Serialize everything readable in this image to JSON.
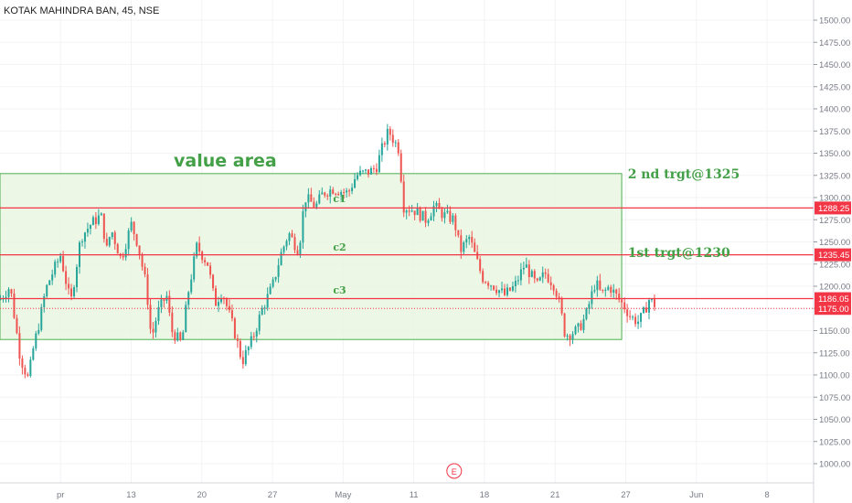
{
  "header": {
    "title": "KOTAK MAHINDRA BAN, 45, NSE"
  },
  "colors": {
    "up": "#26a69a",
    "down": "#ef5350",
    "zone_fill": "#e8f5e0",
    "zone_border": "#4caf50",
    "level_line": "#f23645",
    "annotation": "#43a047"
  },
  "chart_data": {
    "type": "candlestick",
    "y_axis": {
      "min": 985,
      "max": 1515,
      "ticks": [
        "1000.00",
        "1025.00",
        "1050.00",
        "1075.00",
        "1100.00",
        "1125.00",
        "1150.00",
        "1175.00",
        "1200.00",
        "1225.00",
        "1250.00",
        "1275.00",
        "1300.00",
        "1325.00",
        "1350.00",
        "1375.00",
        "1400.00",
        "1425.00",
        "1450.00",
        "1475.00",
        "1500.00"
      ],
      "tick_values": [
        1000,
        1025,
        1050,
        1075,
        1100,
        1125,
        1150,
        1175,
        1200,
        1225,
        1250,
        1275,
        1300,
        1325,
        1350,
        1375,
        1400,
        1425,
        1450,
        1475,
        1500
      ]
    },
    "x_axis": {
      "ticks": [
        "pr",
        "13",
        "20",
        "27",
        "May",
        "11",
        "18",
        "21",
        "27",
        "Jun",
        "8"
      ],
      "tick_values": [
        6,
        13,
        20,
        27,
        34,
        41,
        48,
        55,
        62,
        69,
        76
      ]
    },
    "value_area": {
      "label": "value area",
      "low": 1140,
      "high": 1327,
      "x_start": 0,
      "x_end": 61.6
    },
    "levels": [
      {
        "value": 1288.25,
        "label": "1288.25"
      },
      {
        "value": 1235.45,
        "label": "1235.45"
      },
      {
        "value": 1186.05,
        "label": "1186.05"
      }
    ],
    "last_price": {
      "value": 1175.0,
      "label": "1175.00"
    },
    "annotations": [
      {
        "text": "2 nd trgt@1325",
        "x": 62.2,
        "y": 1327
      },
      {
        "text": "1st trgt@1230",
        "x": 62.2,
        "y": 1238
      },
      {
        "text": "c1",
        "x": 33.0,
        "y": 1295
      },
      {
        "text": "c2",
        "x": 33.0,
        "y": 1240
      },
      {
        "text": "c3",
        "x": 33.0,
        "y": 1192
      }
    ],
    "earnings_marker": {
      "label": "E",
      "x": 45.0
    },
    "path": [
      [
        0,
        1185
      ],
      [
        1,
        1200
      ],
      [
        2,
        1120
      ],
      [
        2.8,
        1095
      ],
      [
        3.3,
        1130
      ],
      [
        4,
        1165
      ],
      [
        4.5,
        1195
      ],
      [
        5,
        1210
      ],
      [
        6,
        1235
      ],
      [
        7,
        1180
      ],
      [
        8,
        1255
      ],
      [
        9,
        1270
      ],
      [
        10,
        1280
      ],
      [
        10.6,
        1240
      ],
      [
        11,
        1265
      ],
      [
        12,
        1230
      ],
      [
        13,
        1270
      ],
      [
        13.6,
        1250
      ],
      [
        14.5,
        1200
      ],
      [
        15,
        1140
      ],
      [
        15.6,
        1170
      ],
      [
        16.5,
        1190
      ],
      [
        17,
        1150
      ],
      [
        18,
        1135
      ],
      [
        18.6,
        1190
      ],
      [
        19.5,
        1245
      ],
      [
        20.6,
        1225
      ],
      [
        21.3,
        1180
      ],
      [
        22,
        1195
      ],
      [
        23.2,
        1150
      ],
      [
        24,
        1115
      ],
      [
        25,
        1140
      ],
      [
        26,
        1175
      ],
      [
        27,
        1200
      ],
      [
        27.8,
        1235
      ],
      [
        28.6,
        1260
      ],
      [
        29.6,
        1240
      ],
      [
        30.2,
        1300
      ],
      [
        31.3,
        1290
      ],
      [
        32,
        1305
      ],
      [
        33,
        1310
      ],
      [
        34.5,
        1305
      ],
      [
        35.3,
        1325
      ],
      [
        36.8,
        1330
      ],
      [
        37.3,
        1335
      ],
      [
        38,
        1360
      ],
      [
        38.5,
        1375
      ],
      [
        39.5,
        1355
      ],
      [
        40,
        1290
      ],
      [
        41.2,
        1285
      ],
      [
        42.2,
        1275
      ],
      [
        43,
        1290
      ],
      [
        44,
        1280
      ],
      [
        45,
        1275
      ],
      [
        45.6,
        1240
      ],
      [
        46.5,
        1255
      ],
      [
        47.2,
        1230
      ],
      [
        47.8,
        1210
      ],
      [
        49,
        1200
      ],
      [
        50,
        1190
      ],
      [
        51,
        1200
      ],
      [
        52,
        1225
      ],
      [
        53.2,
        1200
      ],
      [
        54,
        1215
      ],
      [
        55,
        1200
      ],
      [
        55.6,
        1170
      ],
      [
        56,
        1145
      ],
      [
        57.2,
        1150
      ],
      [
        58,
        1165
      ],
      [
        59,
        1205
      ],
      [
        59.6,
        1190
      ],
      [
        60.4,
        1200
      ],
      [
        61,
        1190
      ],
      [
        62,
        1175
      ],
      [
        62.5,
        1165
      ],
      [
        63.3,
        1160
      ],
      [
        63.8,
        1170
      ],
      [
        64.3,
        1185
      ],
      [
        65,
        1178
      ]
    ]
  }
}
